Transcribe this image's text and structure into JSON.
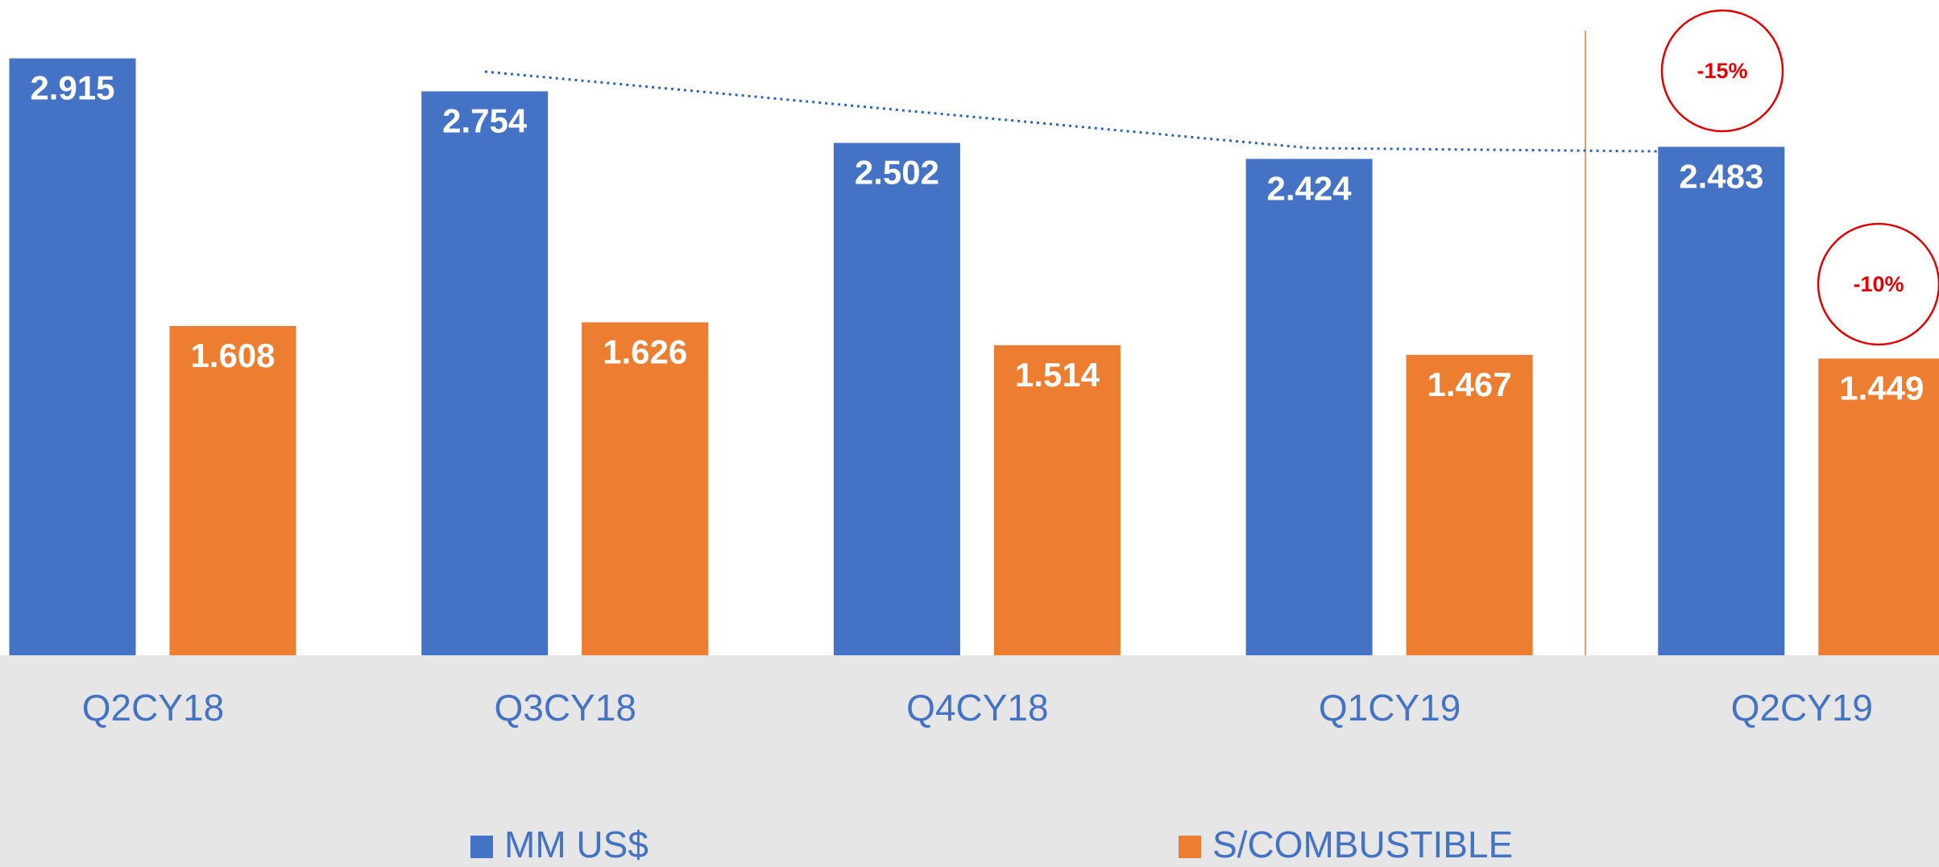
{
  "chart_data": {
    "type": "bar",
    "categories": [
      "Q2CY18",
      "Q3CY18",
      "Q4CY18",
      "Q1CY19",
      "Q2CY19"
    ],
    "series": [
      {
        "name": "MM US$",
        "color": "#4472c4",
        "values": [
          2.915,
          2.754,
          2.502,
          2.424,
          2.483
        ]
      },
      {
        "name": "S/COMBUSTIBLE",
        "color": "#ed7d31",
        "values": [
          1.608,
          1.626,
          1.514,
          1.467,
          1.449
        ]
      }
    ],
    "ylim": [
      0,
      3.2
    ],
    "legend": "bottom",
    "annotations": [
      "-15%",
      "-10%"
    ]
  }
}
